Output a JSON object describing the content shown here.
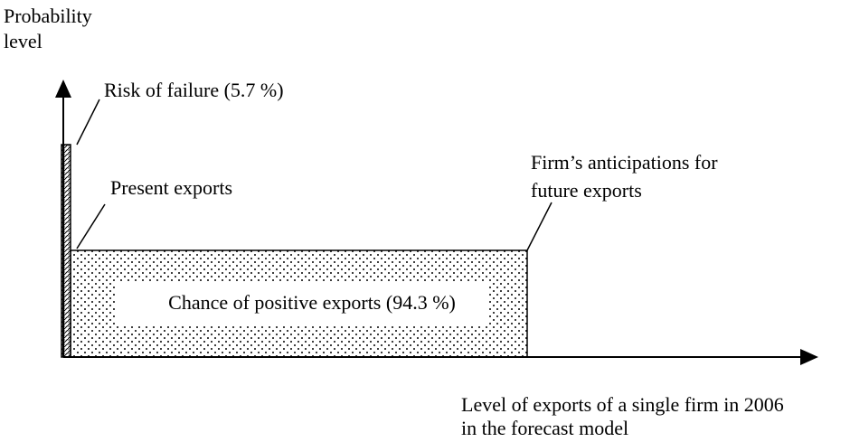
{
  "y_axis_label": [
    "Probability",
    "level"
  ],
  "x_axis_label": [
    "Level of exports of a single firm in 2006",
    "in the forecast model"
  ],
  "annotations": {
    "risk": "Risk of failure (5.7 %)",
    "present": "Present exports",
    "anticipation": [
      "Firm’s anticipations for",
      "future exports"
    ],
    "chance": "Chance of positive exports (94.3 %)"
  }
}
